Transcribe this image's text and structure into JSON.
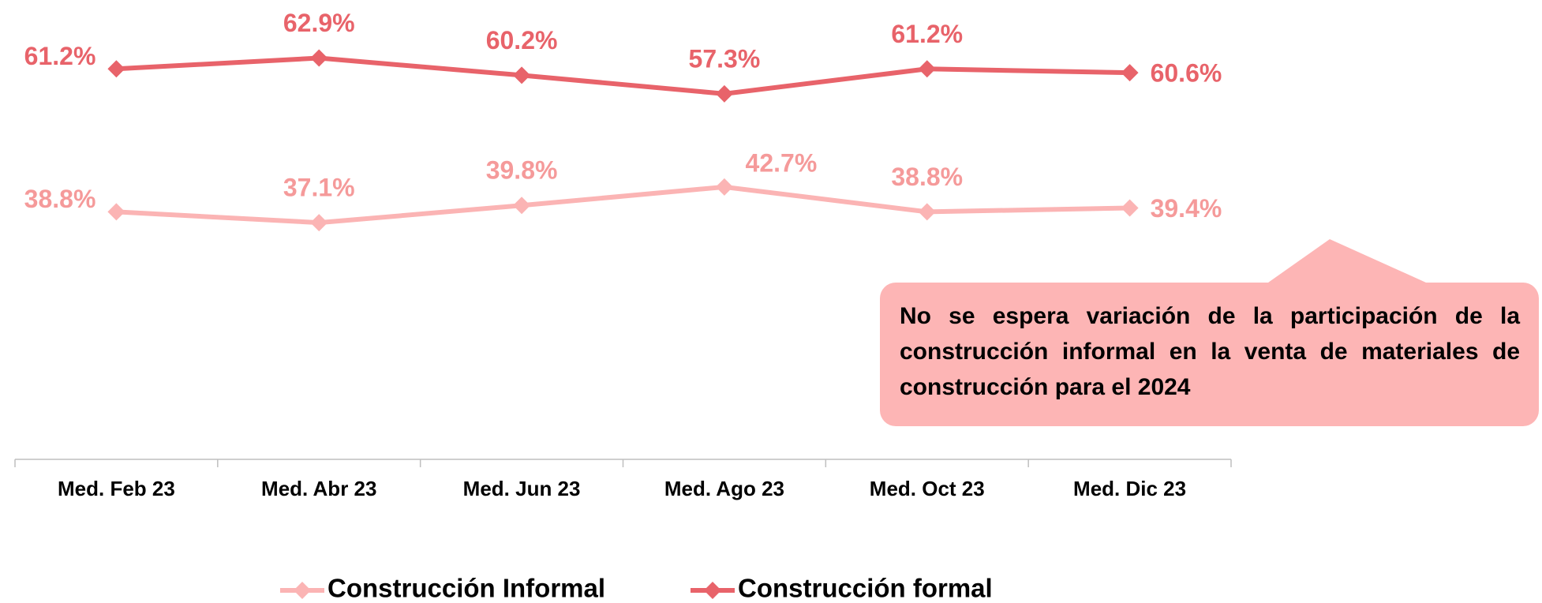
{
  "chart_data": {
    "type": "line",
    "categories": [
      "Med. Feb 23",
      "Med. Abr 23",
      "Med. Jun 23",
      "Med. Ago 23",
      "Med. Oct 23",
      "Med. Dic 23"
    ],
    "series": [
      {
        "name": "Construcción Informal",
        "color": "#fbb4b4",
        "values": [
          38.8,
          37.1,
          39.8,
          42.7,
          38.8,
          39.4
        ],
        "value_labels": [
          "38.8%",
          "37.1%",
          "39.8%",
          "42.7%",
          "38.8%",
          "39.4%"
        ]
      },
      {
        "name": "Construcción formal",
        "color": "#e8636a",
        "values": [
          61.2,
          62.9,
          60.2,
          57.3,
          61.2,
          60.6
        ],
        "value_labels": [
          "61.2%",
          "62.9%",
          "60.2%",
          "57.3%",
          "61.2%",
          "60.6%"
        ]
      }
    ],
    "ylim": [
      0,
      72
    ],
    "annotation": "No se espera variación de la participación de la construcción informal en la venta de materiales de construcción para el 2024",
    "legend": "bottom"
  }
}
